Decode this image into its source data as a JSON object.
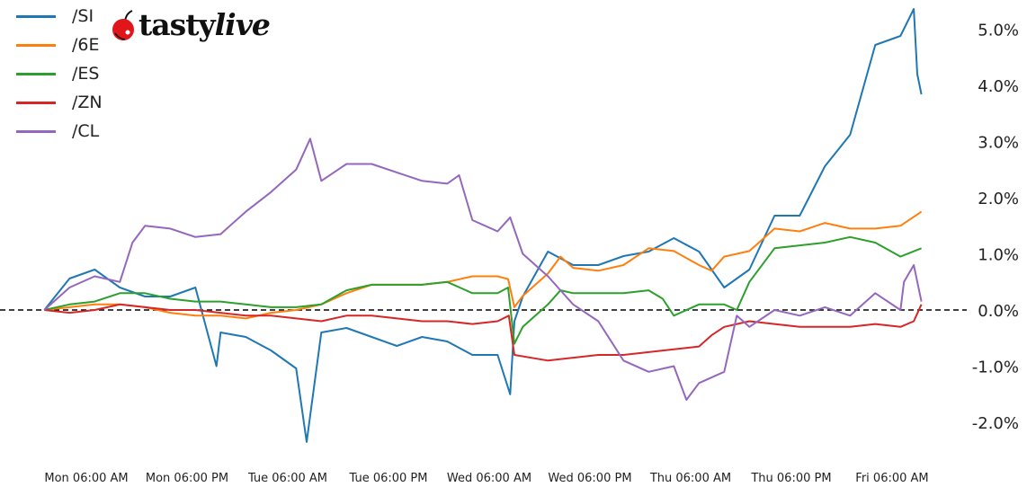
{
  "logo": {
    "text_a": "tasty",
    "text_b": "live"
  },
  "chart_data": {
    "type": "line",
    "title": "",
    "xlabel": "",
    "ylabel": "",
    "legend_position": "top-left",
    "grid": false,
    "zero_line": "dashed black",
    "y_unit": "%",
    "ylim": [
      -2.5,
      5.5
    ],
    "x_range": [
      "Mon 01:00",
      "Fri 09:30"
    ],
    "x_ticks": [
      "Mon 06:00 AM",
      "Mon 06:00 PM",
      "Tue 06:00 AM",
      "Tue 06:00 PM",
      "Wed 06:00 AM",
      "Wed 06:00 PM",
      "Thu 06:00 AM",
      "Thu 06:00 PM",
      "Fri 06:00 AM"
    ],
    "y_ticks": [
      "5.0%",
      "4.0%",
      "3.0%",
      "2.0%",
      "1.0%",
      "0.0%",
      "-1.0%",
      "-2.0%"
    ],
    "series": [
      {
        "name": "/SI",
        "color": "#1f77b4",
        "points": [
          [
            "Mon 01:00",
            0
          ],
          [
            "Mon 04:00",
            0.56
          ],
          [
            "Mon 07:00",
            0.72
          ],
          [
            "Mon 10:00",
            0.4
          ],
          [
            "Mon 13:00",
            0.24
          ],
          [
            "Mon 16:00",
            0.24
          ],
          [
            "Mon 19:00",
            0.4
          ],
          [
            "Mon 21:30",
            -1.0
          ],
          [
            "Mon 22:00",
            -0.4
          ],
          [
            "Tue 01:00",
            -0.48
          ],
          [
            "Tue 04:00",
            -0.72
          ],
          [
            "Tue 07:00",
            -1.04
          ],
          [
            "Tue 08:15",
            -2.35
          ],
          [
            "Tue 10:00",
            -0.4
          ],
          [
            "Tue 13:00",
            -0.32
          ],
          [
            "Tue 16:00",
            -0.48
          ],
          [
            "Tue 19:00",
            -0.64
          ],
          [
            "Tue 22:00",
            -0.48
          ],
          [
            "Wed 01:00",
            -0.56
          ],
          [
            "Wed 04:00",
            -0.8
          ],
          [
            "Wed 07:00",
            -0.8
          ],
          [
            "Wed 08:30",
            -1.5
          ],
          [
            "Wed 09:00",
            -0.2
          ],
          [
            "Wed 10:00",
            0.24
          ],
          [
            "Wed 13:00",
            1.04
          ],
          [
            "Wed 16:00",
            0.8
          ],
          [
            "Wed 19:00",
            0.8
          ],
          [
            "Wed 22:00",
            0.96
          ],
          [
            "Thu 01:00",
            1.04
          ],
          [
            "Thu 04:00",
            1.28
          ],
          [
            "Thu 07:00",
            1.04
          ],
          [
            "Thu 10:00",
            0.4
          ],
          [
            "Thu 13:00",
            0.72
          ],
          [
            "Thu 16:00",
            1.68
          ],
          [
            "Thu 19:00",
            1.68
          ],
          [
            "Thu 22:00",
            2.56
          ],
          [
            "Fri 01:00",
            3.12
          ],
          [
            "Fri 04:00",
            4.72
          ],
          [
            "Fri 07:00",
            4.88
          ],
          [
            "Fri 08:35",
            5.36
          ],
          [
            "Fri 09:00",
            4.2
          ],
          [
            "Fri 09:30",
            3.84
          ]
        ]
      },
      {
        "name": "/6E",
        "color": "#ff7f0e",
        "points": [
          [
            "Mon 01:00",
            0
          ],
          [
            "Mon 04:00",
            0.05
          ],
          [
            "Mon 07:00",
            0.1
          ],
          [
            "Mon 10:00",
            0.1
          ],
          [
            "Mon 13:00",
            0.05
          ],
          [
            "Mon 16:00",
            -0.05
          ],
          [
            "Mon 19:00",
            -0.1
          ],
          [
            "Mon 22:00",
            -0.1
          ],
          [
            "Tue 01:00",
            -0.15
          ],
          [
            "Tue 04:00",
            -0.05
          ],
          [
            "Tue 07:00",
            0
          ],
          [
            "Tue 10:00",
            0.1
          ],
          [
            "Tue 13:00",
            0.3
          ],
          [
            "Tue 16:00",
            0.45
          ],
          [
            "Tue 19:00",
            0.45
          ],
          [
            "Tue 22:00",
            0.45
          ],
          [
            "Wed 01:00",
            0.5
          ],
          [
            "Wed 04:00",
            0.6
          ],
          [
            "Wed 07:00",
            0.6
          ],
          [
            "Wed 08:15",
            0.55
          ],
          [
            "Wed 09:00",
            0.05
          ],
          [
            "Wed 10:00",
            0.25
          ],
          [
            "Wed 13:00",
            0.65
          ],
          [
            "Wed 14:30",
            0.95
          ],
          [
            "Wed 16:00",
            0.75
          ],
          [
            "Wed 19:00",
            0.7
          ],
          [
            "Wed 22:00",
            0.8
          ],
          [
            "Thu 01:00",
            1.1
          ],
          [
            "Thu 04:00",
            1.05
          ],
          [
            "Thu 07:00",
            0.8
          ],
          [
            "Thu 08:30",
            0.7
          ],
          [
            "Thu 10:00",
            0.95
          ],
          [
            "Thu 13:00",
            1.05
          ],
          [
            "Thu 16:00",
            1.45
          ],
          [
            "Thu 19:00",
            1.4
          ],
          [
            "Thu 22:00",
            1.55
          ],
          [
            "Fri 01:00",
            1.45
          ],
          [
            "Fri 04:00",
            1.45
          ],
          [
            "Fri 07:00",
            1.5
          ],
          [
            "Fri 09:30",
            1.75
          ]
        ]
      },
      {
        "name": "/ES",
        "color": "#2ca02c",
        "points": [
          [
            "Mon 01:00",
            0
          ],
          [
            "Mon 04:00",
            0.1
          ],
          [
            "Mon 07:00",
            0.15
          ],
          [
            "Mon 10:00",
            0.3
          ],
          [
            "Mon 13:00",
            0.3
          ],
          [
            "Mon 16:00",
            0.2
          ],
          [
            "Mon 19:00",
            0.15
          ],
          [
            "Mon 22:00",
            0.15
          ],
          [
            "Tue 01:00",
            0.1
          ],
          [
            "Tue 04:00",
            0.05
          ],
          [
            "Tue 07:00",
            0.05
          ],
          [
            "Tue 10:00",
            0.1
          ],
          [
            "Tue 13:00",
            0.35
          ],
          [
            "Tue 16:00",
            0.45
          ],
          [
            "Tue 19:00",
            0.45
          ],
          [
            "Tue 22:00",
            0.45
          ],
          [
            "Wed 01:00",
            0.5
          ],
          [
            "Wed 04:00",
            0.3
          ],
          [
            "Wed 07:00",
            0.3
          ],
          [
            "Wed 08:15",
            0.4
          ],
          [
            "Wed 09:00",
            -0.6
          ],
          [
            "Wed 10:00",
            -0.3
          ],
          [
            "Wed 13:00",
            0.1
          ],
          [
            "Wed 14:30",
            0.35
          ],
          [
            "Wed 16:00",
            0.3
          ],
          [
            "Wed 19:00",
            0.3
          ],
          [
            "Wed 22:00",
            0.3
          ],
          [
            "Thu 01:00",
            0.35
          ],
          [
            "Thu 02:40",
            0.2
          ],
          [
            "Thu 04:00",
            -0.1
          ],
          [
            "Thu 07:00",
            0.1
          ],
          [
            "Thu 10:00",
            0.1
          ],
          [
            "Thu 11:30",
            0
          ],
          [
            "Thu 13:00",
            0.5
          ],
          [
            "Thu 16:00",
            1.1
          ],
          [
            "Thu 19:00",
            1.15
          ],
          [
            "Thu 22:00",
            1.2
          ],
          [
            "Fri 01:00",
            1.3
          ],
          [
            "Fri 04:00",
            1.2
          ],
          [
            "Fri 07:00",
            0.95
          ],
          [
            "Fri 09:30",
            1.1
          ]
        ]
      },
      {
        "name": "/ZN",
        "color": "#d62728",
        "points": [
          [
            "Mon 01:00",
            0
          ],
          [
            "Mon 04:00",
            -0.05
          ],
          [
            "Mon 07:00",
            0
          ],
          [
            "Mon 10:00",
            0.1
          ],
          [
            "Mon 13:00",
            0.05
          ],
          [
            "Mon 16:00",
            0
          ],
          [
            "Mon 19:00",
            0
          ],
          [
            "Mon 22:00",
            -0.05
          ],
          [
            "Tue 01:00",
            -0.1
          ],
          [
            "Tue 04:00",
            -0.1
          ],
          [
            "Tue 07:00",
            -0.15
          ],
          [
            "Tue 10:00",
            -0.2
          ],
          [
            "Tue 13:00",
            -0.1
          ],
          [
            "Tue 16:00",
            -0.1
          ],
          [
            "Tue 19:00",
            -0.15
          ],
          [
            "Tue 22:00",
            -0.2
          ],
          [
            "Wed 01:00",
            -0.2
          ],
          [
            "Wed 04:00",
            -0.25
          ],
          [
            "Wed 07:00",
            -0.2
          ],
          [
            "Wed 08:20",
            -0.1
          ],
          [
            "Wed 09:00",
            -0.8
          ],
          [
            "Wed 13:00",
            -0.9
          ],
          [
            "Wed 16:00",
            -0.85
          ],
          [
            "Wed 19:00",
            -0.8
          ],
          [
            "Wed 22:00",
            -0.8
          ],
          [
            "Thu 01:00",
            -0.75
          ],
          [
            "Thu 04:00",
            -0.7
          ],
          [
            "Thu 07:00",
            -0.65
          ],
          [
            "Thu 08:30",
            -0.45
          ],
          [
            "Thu 10:00",
            -0.3
          ],
          [
            "Thu 13:00",
            -0.2
          ],
          [
            "Thu 16:00",
            -0.25
          ],
          [
            "Thu 19:00",
            -0.3
          ],
          [
            "Thu 22:00",
            -0.3
          ],
          [
            "Fri 01:00",
            -0.3
          ],
          [
            "Fri 04:00",
            -0.25
          ],
          [
            "Fri 07:00",
            -0.3
          ],
          [
            "Fri 08:35",
            -0.2
          ],
          [
            "Fri 09:30",
            0.1
          ]
        ]
      },
      {
        "name": "/CL",
        "color": "#9467bd",
        "points": [
          [
            "Mon 01:00",
            0
          ],
          [
            "Mon 04:00",
            0.4
          ],
          [
            "Mon 07:00",
            0.6
          ],
          [
            "Mon 10:00",
            0.5
          ],
          [
            "Mon 11:30",
            1.2
          ],
          [
            "Mon 13:00",
            1.5
          ],
          [
            "Mon 16:00",
            1.45
          ],
          [
            "Mon 19:00",
            1.3
          ],
          [
            "Mon 22:00",
            1.35
          ],
          [
            "Tue 01:00",
            1.75
          ],
          [
            "Tue 04:00",
            2.1
          ],
          [
            "Tue 07:00",
            2.5
          ],
          [
            "Tue 08:40",
            3.05
          ],
          [
            "Tue 10:00",
            2.3
          ],
          [
            "Tue 13:00",
            2.6
          ],
          [
            "Tue 16:00",
            2.6
          ],
          [
            "Tue 19:00",
            2.45
          ],
          [
            "Tue 22:00",
            2.3
          ],
          [
            "Wed 01:00",
            2.25
          ],
          [
            "Wed 02:25",
            2.4
          ],
          [
            "Wed 04:00",
            1.6
          ],
          [
            "Wed 07:00",
            1.4
          ],
          [
            "Wed 08:30",
            1.65
          ],
          [
            "Wed 10:00",
            1.0
          ],
          [
            "Wed 13:00",
            0.6
          ],
          [
            "Wed 16:00",
            0.1
          ],
          [
            "Wed 19:00",
            -0.2
          ],
          [
            "Wed 22:00",
            -0.9
          ],
          [
            "Thu 01:00",
            -1.1
          ],
          [
            "Thu 04:00",
            -1.0
          ],
          [
            "Thu 05:30",
            -1.6
          ],
          [
            "Thu 07:00",
            -1.3
          ],
          [
            "Thu 10:00",
            -1.1
          ],
          [
            "Thu 11:30",
            -0.1
          ],
          [
            "Thu 13:00",
            -0.3
          ],
          [
            "Thu 16:00",
            0
          ],
          [
            "Thu 19:00",
            -0.1
          ],
          [
            "Thu 22:00",
            0.05
          ],
          [
            "Fri 01:00",
            -0.1
          ],
          [
            "Fri 04:00",
            0.3
          ],
          [
            "Fri 07:00",
            0
          ],
          [
            "Fri 07:25",
            0.5
          ],
          [
            "Fri 08:35",
            0.8
          ],
          [
            "Fri 09:30",
            0.15
          ]
        ]
      }
    ]
  }
}
